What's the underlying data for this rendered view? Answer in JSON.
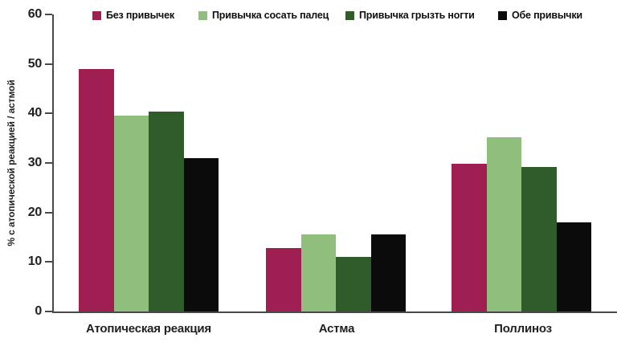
{
  "chart_data": {
    "type": "bar",
    "title": "",
    "ylabel": "% с атопической реакцией / астмой",
    "xlabel": "",
    "ylim": [
      0,
      60
    ],
    "yticks": [
      0,
      10,
      20,
      30,
      40,
      50,
      60
    ],
    "grid": false,
    "legend_position": "top",
    "categories": [
      "Атопическая реакция",
      "Астма",
      "Поллиноз"
    ],
    "series": [
      {
        "name": "Без привычек",
        "color": "#a01f53",
        "values": [
          49.0,
          12.8,
          29.8
        ]
      },
      {
        "name": "Привычка сосать палец",
        "color": "#90bf7d",
        "values": [
          39.5,
          15.5,
          35.2
        ]
      },
      {
        "name": "Привычка грызть ногти",
        "color": "#2f5c2a",
        "values": [
          40.4,
          11.0,
          29.2
        ]
      },
      {
        "name": "Обе привычки",
        "color": "#0b0b0b",
        "values": [
          30.9,
          15.5,
          18.0
        ]
      }
    ]
  }
}
